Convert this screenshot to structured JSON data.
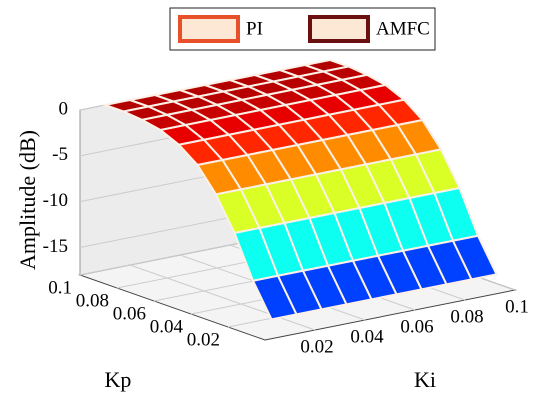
{
  "chart_data": {
    "type": "surface3d",
    "zlabel": "Amplitude (dB)",
    "ylabel": "Kp",
    "xlabel": "Ki",
    "legend": [
      {
        "name": "PI",
        "color": "#e8502a"
      },
      {
        "name": "AMFC",
        "color": "#6b1010"
      }
    ],
    "x": [
      0.01,
      0.02,
      0.03,
      0.04,
      0.05,
      0.06,
      0.07,
      0.08,
      0.09,
      0.1
    ],
    "y": [
      0.01,
      0.02,
      0.03,
      0.04,
      0.05,
      0.06,
      0.07,
      0.08,
      0.09,
      0.1
    ],
    "z": [
      [
        -17,
        -17,
        -17,
        -17,
        -17,
        -17,
        -17,
        -17,
        -17,
        -17
      ],
      [
        -13.5,
        -13.5,
        -13.5,
        -13.5,
        -13.5,
        -13.5,
        -13.5,
        -13.5,
        -13.5,
        -13.5
      ],
      [
        -9,
        -9,
        -9,
        -9,
        -9,
        -9,
        -9,
        -9,
        -9,
        -9
      ],
      [
        -5.5,
        -5.5,
        -5.5,
        -5.5,
        -5.5,
        -5.5,
        -5.5,
        -5.5,
        -5.5,
        -5.5
      ],
      [
        -3,
        -3,
        -3,
        -3,
        -3,
        -3,
        -3,
        -3,
        -3,
        -3
      ],
      [
        -1.5,
        -1.5,
        -1.5,
        -1.5,
        -1.5,
        -1.5,
        -1.5,
        -1.5,
        -1.5,
        -1.5
      ],
      [
        -0.6,
        -0.6,
        -0.6,
        -0.6,
        -0.6,
        -0.6,
        -0.6,
        -0.6,
        -0.6,
        -0.6
      ],
      [
        -0.2,
        -0.2,
        -0.2,
        -0.2,
        -0.2,
        -0.2,
        -0.2,
        -0.2,
        -0.2,
        -0.2
      ],
      [
        0,
        0,
        0,
        0,
        0,
        0,
        0,
        0,
        0,
        0
      ],
      [
        0,
        0,
        0,
        0,
        0,
        0,
        0,
        0,
        0,
        0
      ]
    ],
    "xlim": [
      0,
      0.1
    ],
    "ylim": [
      0,
      0.1
    ],
    "zlim": [
      -18,
      0
    ],
    "xticks": [
      0.02,
      0.04,
      0.06,
      0.08,
      0.1
    ],
    "yticks": [
      0.02,
      0.04,
      0.06,
      0.08,
      0.1
    ],
    "zticks": [
      0,
      -5,
      -10,
      -15
    ],
    "grid": true
  }
}
